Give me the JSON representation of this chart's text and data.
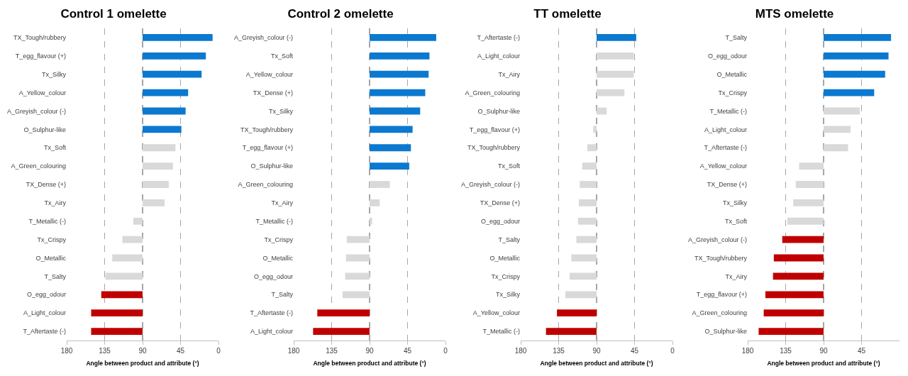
{
  "chart_data": [
    {
      "type": "bar",
      "orientation": "horizontal",
      "title": "Control 1 omelette",
      "xlabel": "Angle between product and attribute (°)",
      "categories": [
        "TX_Tough/rubbery",
        "T_egg_flavour (+)",
        "Tx_Silky",
        "A_Yellow_colour",
        "A_Greyish_colour (-)",
        "O_Sulphur-like",
        "Tx_Soft",
        "A_Green_colouring",
        "TX_Dense (+)",
        "Tx_Airy",
        "T_Metallic (-)",
        "Tx_Crispy",
        "O_Metallic",
        "T_Salty",
        "O_egg_odour",
        "A_Light_colour",
        "T_Aftertaste (-)"
      ],
      "base": [
        90,
        90,
        90,
        90,
        90,
        90,
        90,
        90,
        90,
        90,
        90,
        90,
        90,
        90,
        90,
        90,
        90
      ],
      "values": [
        -83,
        -75,
        -70,
        -54,
        -51,
        -46,
        -39,
        -36,
        -31,
        -26,
        11,
        24,
        36,
        44,
        49,
        61,
        61
      ],
      "colors": [
        "#0b79d0",
        "#0b79d0",
        "#0b79d0",
        "#0b79d0",
        "#0b79d0",
        "#0b79d0",
        "#d9d9d9",
        "#d9d9d9",
        "#d9d9d9",
        "#d9d9d9",
        "#d9d9d9",
        "#d9d9d9",
        "#d9d9d9",
        "#d9d9d9",
        "#c00000",
        "#c00000",
        "#c00000"
      ],
      "xlim": [
        180,
        0
      ],
      "xticks": [
        180,
        135,
        90,
        45,
        0
      ],
      "grid": "x"
    },
    {
      "type": "bar",
      "orientation": "horizontal",
      "title": "Control 2 omelette",
      "xlabel": "Angle between product and attribute (°)",
      "categories": [
        "A_Greyish_colour (-)",
        "Tx_Soft",
        "A_Yellow_colour",
        "TX_Dense (+)",
        "Tx_Silky",
        "TX_Tough/rubbery",
        "T_egg_flavour (+)",
        "O_Sulphur-like",
        "A_Green_colouring",
        "Tx_Airy",
        "T_Metallic (-)",
        "Tx_Crispy",
        "O_Metallic",
        "O_egg_odour",
        "T_Salty",
        "T_Aftertaste (-)",
        "A_Light_colour"
      ],
      "base": [
        90,
        90,
        90,
        90,
        90,
        90,
        90,
        90,
        90,
        90,
        90,
        90,
        90,
        90,
        90,
        90,
        90
      ],
      "values": [
        -79,
        -71,
        -70,
        -66,
        -60,
        -51,
        -49,
        -47,
        -24,
        -12,
        -3,
        27,
        28,
        29,
        32,
        62,
        67
      ],
      "colors": [
        "#0b79d0",
        "#0b79d0",
        "#0b79d0",
        "#0b79d0",
        "#0b79d0",
        "#0b79d0",
        "#0b79d0",
        "#0b79d0",
        "#d9d9d9",
        "#d9d9d9",
        "#d9d9d9",
        "#d9d9d9",
        "#d9d9d9",
        "#d9d9d9",
        "#d9d9d9",
        "#c00000",
        "#c00000"
      ],
      "xlim": [
        180,
        0
      ],
      "xticks": [
        180,
        135,
        90,
        45,
        0
      ],
      "grid": "x"
    },
    {
      "type": "bar",
      "orientation": "horizontal",
      "title": "TT omelette",
      "xlabel": "Angle between product and attribute (°)",
      "categories": [
        "T_Aftertaste (-)",
        "A_Light_colour",
        "Tx_Airy",
        "A_Green_colouring",
        "O_Sulphur-like",
        "T_egg_flavour (+)",
        "TX_Tough/rubbery",
        "Tx_Soft",
        "A_Greyish_colour (-)",
        "TX_Dense (+)",
        "O_egg_odour",
        "T_Salty",
        "O_Metallic",
        "Tx_Crispy",
        "Tx_Silky",
        "A_Yellow_colour",
        "T_Metallic (-)"
      ],
      "base": [
        90,
        90,
        90,
        90,
        90,
        90,
        90,
        90,
        90,
        90,
        90,
        90,
        90,
        90,
        90,
        90,
        90
      ],
      "values": [
        -47,
        -44,
        -44,
        -33,
        -12,
        4,
        11,
        17,
        20,
        21,
        22,
        24,
        30,
        32,
        37,
        47,
        60
      ],
      "colors": [
        "#0b79d0",
        "#d9d9d9",
        "#d9d9d9",
        "#d9d9d9",
        "#d9d9d9",
        "#d9d9d9",
        "#d9d9d9",
        "#d9d9d9",
        "#d9d9d9",
        "#d9d9d9",
        "#d9d9d9",
        "#d9d9d9",
        "#d9d9d9",
        "#d9d9d9",
        "#d9d9d9",
        "#c00000",
        "#c00000"
      ],
      "xlim": [
        180,
        0
      ],
      "xticks": [
        180,
        135,
        90,
        45,
        0
      ],
      "grid": "x"
    },
    {
      "type": "bar",
      "orientation": "horizontal",
      "title": "MTS omelette",
      "xlabel": "Angle between product and attribute (°)",
      "categories": [
        "T_Salty",
        "O_egg_odour",
        "O_Metallic",
        "Tx_Crispy",
        "T_Metallic (-)",
        "A_Light_colour",
        "T_Aftertaste (-)",
        "A_Yellow_colour",
        "TX_Dense (+)",
        "Tx_Silky",
        "Tx_Soft",
        "A_Greyish_colour (-)",
        "TX_Tough/rubbery",
        "Tx_Airy",
        "T_egg_flavour (+)",
        "A_Green_colouring",
        "O_Sulphur-like"
      ],
      "base": [
        90,
        90,
        90,
        90,
        90,
        90,
        90,
        90,
        90,
        90,
        90,
        90,
        90,
        90,
        90,
        90,
        90
      ],
      "values": [
        -80,
        -77,
        -73,
        -60,
        -43,
        -32,
        -29,
        29,
        33,
        36,
        43,
        49,
        59,
        60,
        69,
        71,
        77
      ],
      "colors": [
        "#0b79d0",
        "#0b79d0",
        "#0b79d0",
        "#0b79d0",
        "#d9d9d9",
        "#d9d9d9",
        "#d9d9d9",
        "#d9d9d9",
        "#d9d9d9",
        "#d9d9d9",
        "#d9d9d9",
        "#c00000",
        "#c00000",
        "#c00000",
        "#c00000",
        "#c00000",
        "#c00000"
      ],
      "xlim": [
        180,
        0
      ],
      "xticks": [
        180,
        135,
        90,
        45
      ],
      "grid": "x"
    }
  ]
}
